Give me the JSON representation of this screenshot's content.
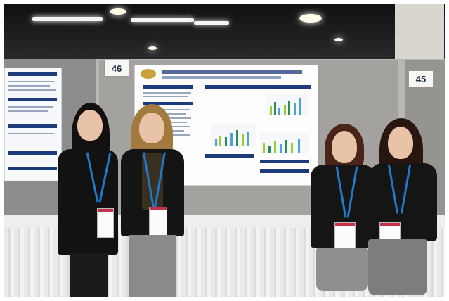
{
  "scene": {
    "description_free": true,
    "board_numbers": [
      "46",
      "45"
    ]
  },
  "colors": {
    "poster_navy": "#1d3a7a",
    "lanyard_blue": "#2377c9",
    "badge_red": "#c4304a",
    "wall_gray": "#b9b7b2"
  },
  "chart_bar_colors": [
    "#2e8b57",
    "#4da3d9",
    "#9acd32"
  ]
}
